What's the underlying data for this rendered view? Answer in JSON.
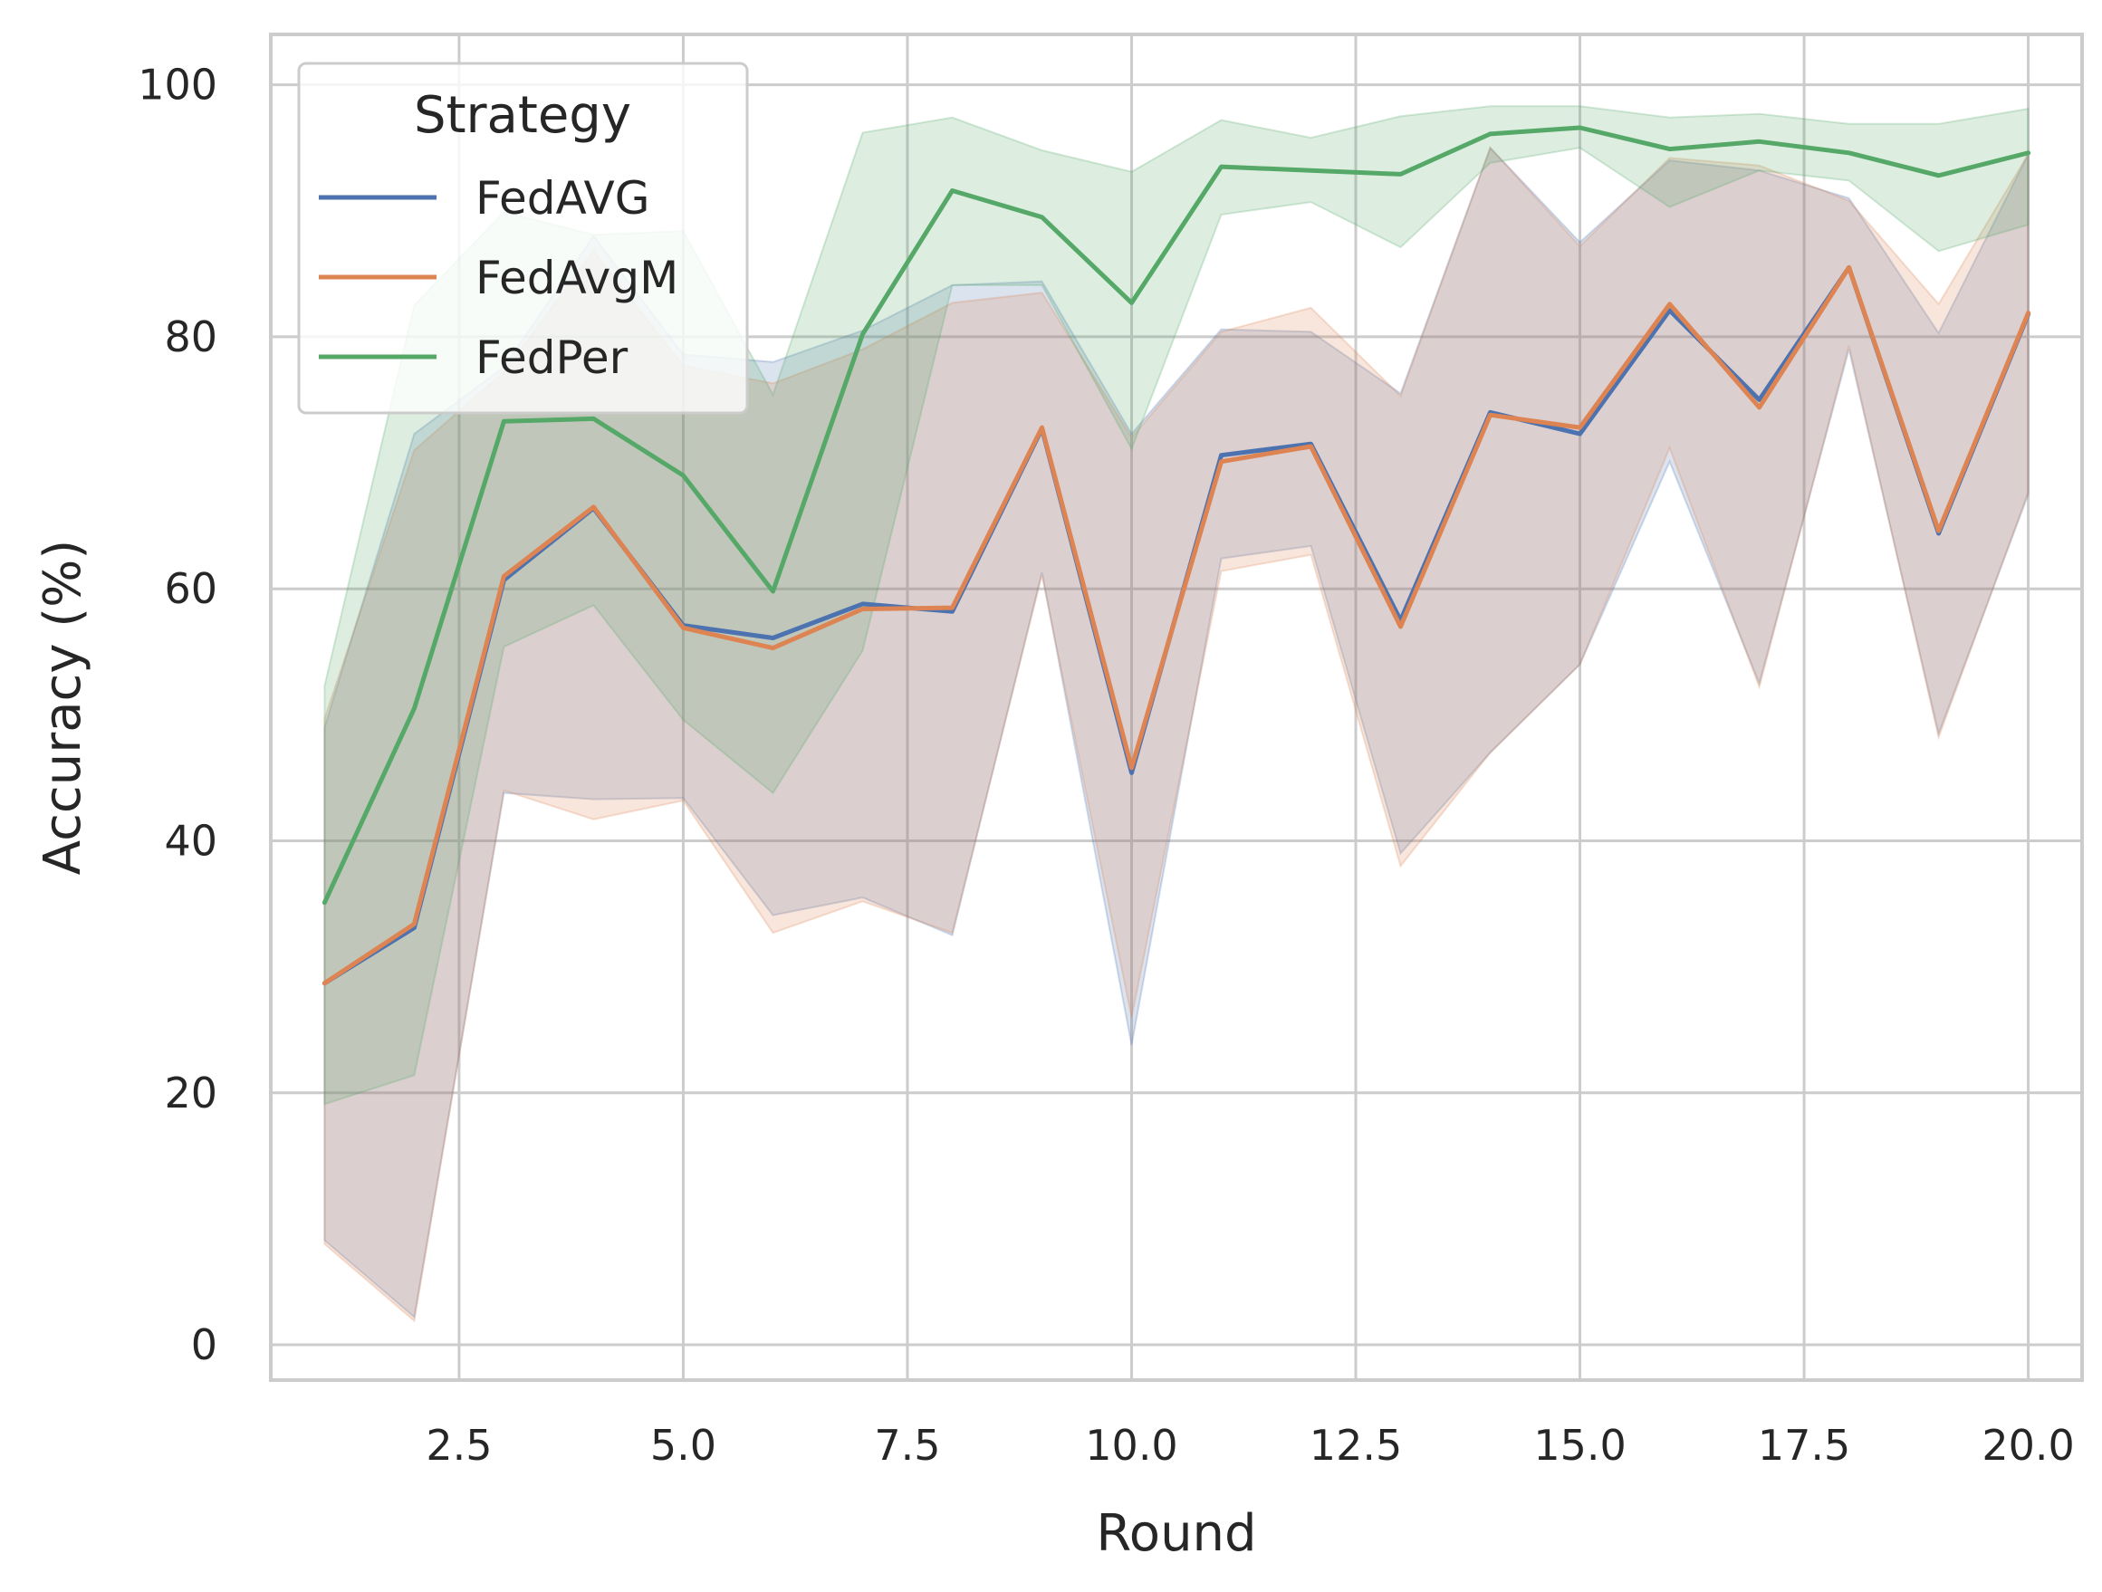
{
  "chart_data": {
    "type": "line",
    "xlabel": "Round",
    "ylabel": "Accuracy (%)",
    "xlim": [
      0.4,
      20.6
    ],
    "ylim": [
      -2.8,
      104
    ],
    "x_ticks": [
      2.5,
      5.0,
      7.5,
      10.0,
      12.5,
      15.0,
      17.5,
      20.0
    ],
    "x_tick_labels": [
      "2.5",
      "5.0",
      "7.5",
      "10.0",
      "12.5",
      "15.0",
      "17.5",
      "20.0"
    ],
    "y_ticks": [
      0,
      20,
      40,
      60,
      80,
      100
    ],
    "y_tick_labels": [
      "0",
      "20",
      "40",
      "60",
      "80",
      "100"
    ],
    "grid": true,
    "legend": {
      "title": "Strategy",
      "placement": "top-left"
    },
    "x": [
      1,
      2,
      3,
      4,
      5,
      6,
      7,
      8,
      9,
      10,
      11,
      12,
      13,
      14,
      15,
      16,
      17,
      18,
      19,
      20
    ],
    "series": [
      {
        "name": "FedAVG",
        "color": "#4c72b0",
        "values": [
          28.7,
          33.1,
          60.7,
          66.4,
          57.1,
          56.1,
          58.8,
          58.2,
          72.7,
          45.4,
          70.6,
          71.5,
          57.5,
          74.0,
          72.3,
          82.1,
          75.0,
          85.5,
          64.4,
          81.8
        ],
        "lower": [
          8.3,
          2.2,
          43.8,
          43.3,
          43.4,
          34.1,
          35.5,
          32.5,
          61.3,
          23.8,
          62.4,
          63.4,
          39.0,
          47.0,
          54.0,
          70.1,
          52.5,
          79.0,
          48.5,
          67.5
        ],
        "upper": [
          49.0,
          72.3,
          77.6,
          88.0,
          78.6,
          78.0,
          80.5,
          84.1,
          84.4,
          72.3,
          80.6,
          80.4,
          75.5,
          95.0,
          87.5,
          94.0,
          93.2,
          91.0,
          80.3,
          94.5
        ]
      },
      {
        "name": "FedAvgM",
        "color": "#dd8452",
        "values": [
          28.7,
          33.4,
          61.0,
          66.5,
          56.9,
          55.3,
          58.4,
          58.5,
          72.8,
          45.8,
          70.1,
          71.3,
          57.0,
          73.8,
          72.8,
          82.6,
          74.4,
          85.5,
          64.6,
          81.9
        ],
        "lower": [
          8.0,
          1.9,
          44.0,
          41.7,
          43.2,
          32.7,
          35.2,
          32.7,
          61.1,
          26.0,
          61.4,
          62.7,
          38.0,
          47.0,
          54.0,
          71.2,
          52.2,
          79.3,
          48.2,
          67.7
        ],
        "upper": [
          49.7,
          71.0,
          77.2,
          86.8,
          77.7,
          76.3,
          79.0,
          82.7,
          83.5,
          72.0,
          80.4,
          82.3,
          75.3,
          95.0,
          87.2,
          94.2,
          93.6,
          90.8,
          82.6,
          94.5
        ]
      },
      {
        "name": "FedPer",
        "color": "#55a868",
        "values": [
          35.1,
          50.5,
          73.3,
          73.5,
          69.0,
          59.8,
          80.2,
          91.6,
          89.5,
          82.7,
          93.5,
          93.2,
          92.9,
          96.1,
          96.6,
          94.9,
          95.5,
          94.6,
          92.8,
          94.6
        ],
        "lower": [
          19.1,
          21.4,
          55.4,
          58.7,
          49.6,
          43.8,
          55.1,
          84.1,
          84.1,
          71.1,
          89.7,
          90.7,
          87.1,
          93.8,
          95.0,
          90.3,
          93.2,
          92.4,
          86.8,
          88.9
        ],
        "upper": [
          52.3,
          82.5,
          89.9,
          88.1,
          88.4,
          75.4,
          96.2,
          97.4,
          94.8,
          93.1,
          97.2,
          95.8,
          97.5,
          98.3,
          98.3,
          97.4,
          97.7,
          96.9,
          96.9,
          98.1
        ]
      }
    ]
  }
}
